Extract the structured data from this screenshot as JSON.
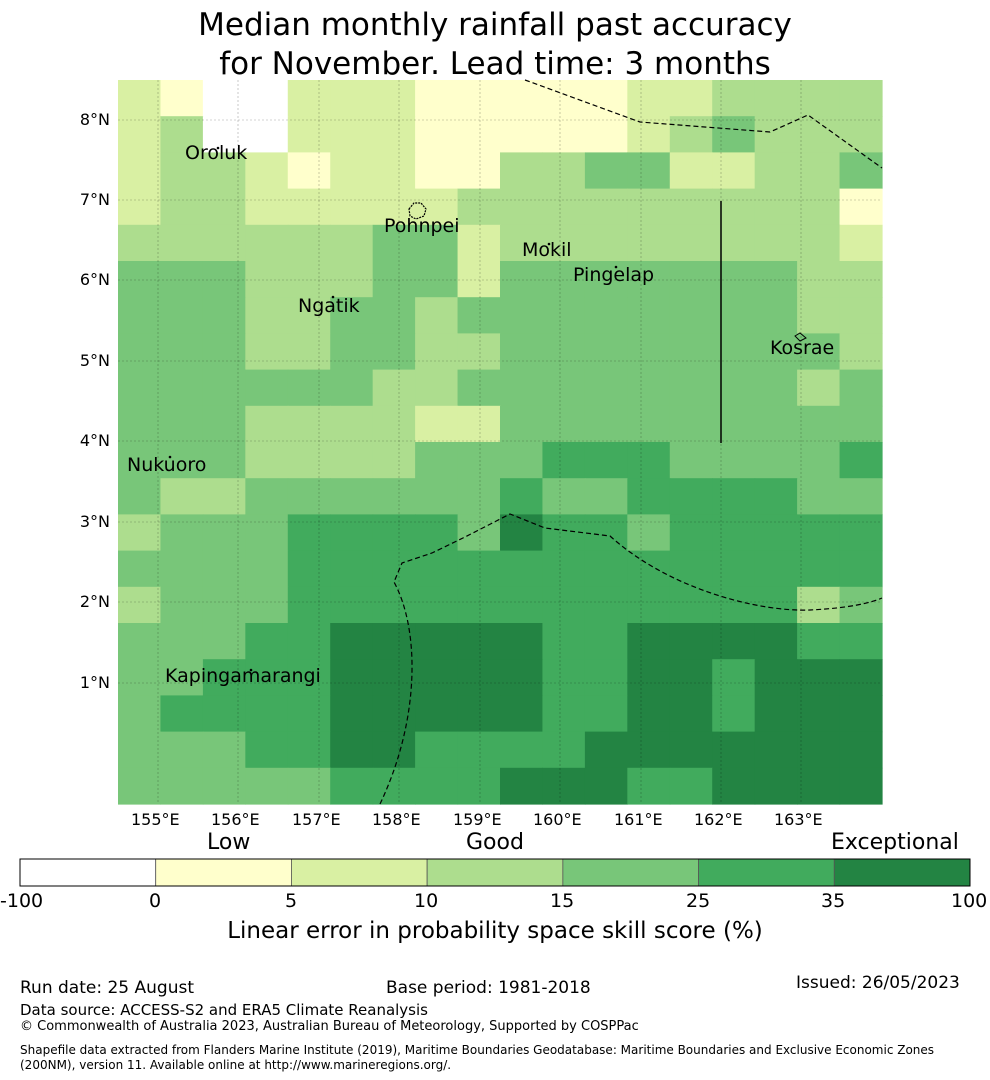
{
  "title": {
    "line1": "Median monthly rainfall past accuracy",
    "line2": "for November. Lead time: 3 months"
  },
  "map": {
    "lon_labels": [
      "155°E",
      "156°E",
      "157°E",
      "158°E",
      "159°E",
      "160°E",
      "161°E",
      "162°E",
      "163°E"
    ],
    "lat_labels": [
      "8°N",
      "7°N",
      "6°N",
      "5°N",
      "4°N",
      "3°N",
      "2°N",
      "1°N"
    ],
    "places": [
      "Oroluk",
      "Pohnpei",
      "Mokil",
      "Pingelap",
      "Ngatik",
      "Kosrae",
      "Nukuoro",
      "Kapingamarangi"
    ],
    "colors": {
      "c0": "#ffffff",
      "c1": "#ffffcc",
      "c2": "#d9f0a3",
      "c3": "#addd8e",
      "c4": "#78c679",
      "c5": "#41ab5d",
      "c6": "#238443"
    },
    "grid_levels": [
      [
        2,
        1,
        0,
        0,
        2,
        2,
        2,
        1,
        1,
        1,
        1,
        1,
        2,
        2,
        3,
        3,
        3,
        3
      ],
      [
        2,
        3,
        0,
        0,
        2,
        2,
        2,
        1,
        1,
        1,
        1,
        1,
        2,
        3,
        4,
        3,
        3,
        3
      ],
      [
        2,
        3,
        3,
        2,
        1,
        2,
        2,
        1,
        1,
        3,
        3,
        4,
        4,
        2,
        2,
        3,
        3,
        4
      ],
      [
        2,
        3,
        3,
        2,
        2,
        2,
        2,
        2,
        3,
        3,
        3,
        3,
        3,
        3,
        3,
        3,
        3,
        1
      ],
      [
        3,
        3,
        3,
        3,
        3,
        3,
        4,
        4,
        2,
        3,
        3,
        3,
        3,
        3,
        3,
        3,
        3,
        2
      ],
      [
        4,
        4,
        4,
        3,
        3,
        3,
        4,
        4,
        2,
        4,
        4,
        4,
        4,
        4,
        4,
        4,
        3,
        3
      ],
      [
        4,
        4,
        4,
        3,
        3,
        4,
        4,
        3,
        4,
        4,
        4,
        4,
        4,
        4,
        4,
        4,
        3,
        3
      ],
      [
        4,
        4,
        4,
        3,
        3,
        4,
        4,
        3,
        3,
        4,
        4,
        4,
        4,
        4,
        4,
        4,
        4,
        3
      ],
      [
        4,
        4,
        4,
        4,
        4,
        4,
        3,
        3,
        4,
        4,
        4,
        4,
        4,
        4,
        4,
        4,
        3,
        4
      ],
      [
        4,
        4,
        4,
        3,
        3,
        3,
        3,
        2,
        2,
        4,
        4,
        4,
        4,
        4,
        4,
        4,
        4,
        4
      ],
      [
        4,
        4,
        4,
        3,
        3,
        3,
        3,
        4,
        4,
        4,
        5,
        5,
        5,
        4,
        4,
        4,
        4,
        5
      ],
      [
        4,
        3,
        3,
        4,
        4,
        4,
        4,
        4,
        4,
        5,
        4,
        4,
        5,
        5,
        5,
        5,
        4,
        4
      ],
      [
        3,
        4,
        4,
        4,
        5,
        5,
        5,
        5,
        4,
        6,
        5,
        5,
        4,
        5,
        5,
        5,
        5,
        5
      ],
      [
        4,
        4,
        4,
        4,
        5,
        5,
        5,
        5,
        5,
        5,
        5,
        5,
        5,
        5,
        5,
        5,
        5,
        5
      ],
      [
        3,
        4,
        4,
        4,
        5,
        5,
        5,
        5,
        5,
        5,
        5,
        5,
        5,
        5,
        5,
        5,
        3,
        4
      ],
      [
        4,
        4,
        4,
        5,
        5,
        6,
        6,
        6,
        6,
        6,
        5,
        5,
        6,
        6,
        6,
        6,
        5,
        5
      ],
      [
        4,
        4,
        5,
        5,
        5,
        6,
        6,
        6,
        6,
        6,
        5,
        5,
        6,
        6,
        5,
        6,
        6,
        6
      ],
      [
        4,
        5,
        5,
        5,
        5,
        6,
        6,
        6,
        6,
        6,
        5,
        5,
        6,
        6,
        5,
        6,
        6,
        6
      ],
      [
        4,
        4,
        4,
        5,
        5,
        6,
        6,
        5,
        5,
        5,
        5,
        6,
        6,
        6,
        6,
        6,
        6,
        6
      ],
      [
        4,
        4,
        4,
        4,
        4,
        5,
        5,
        5,
        5,
        6,
        6,
        6,
        5,
        5,
        6,
        6,
        6,
        6
      ]
    ]
  },
  "colorbar": {
    "categories": [
      "Low",
      "Good",
      "Exceptional"
    ],
    "ticks": [
      "-100",
      "0",
      "5",
      "10",
      "15",
      "25",
      "35",
      "100"
    ],
    "title": "Linear error in probability space skill score (%)"
  },
  "footer": {
    "run_date": "Run date: 25 August",
    "base_period": "Base period: 1981-2018",
    "issued": "Issued: 26/05/2023",
    "data_source": "Data source: ACCESS-S2 and ERA5 Climate Reanalysis",
    "copyright": "© Commonwealth of Australia 2023, Australian Bureau of Meteorology, Supported by COSPPac",
    "shapefile_line1": "Shapefile data extracted from Flanders Marine Institute (2019), Maritime Boundaries Geodatabase: Maritime Boundaries and Exclusive Economic Zones",
    "shapefile_line2": "(200NM), version 11. Available online at http://www.marineregions.org/."
  }
}
